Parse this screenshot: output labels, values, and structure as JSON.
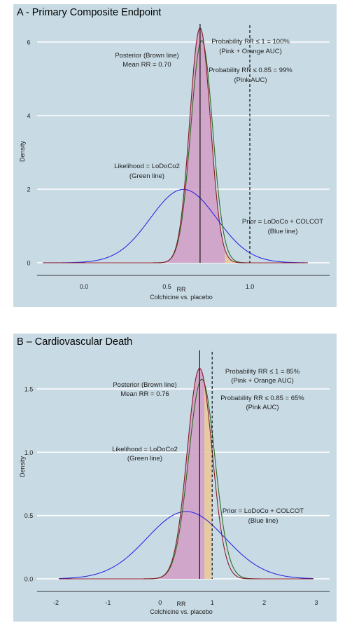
{
  "chart_data": [
    {
      "type": "line",
      "title": "A - Primary Composite Endpoint",
      "xlabel": "RR",
      "xlabel2": "Colchicine vs. placebo",
      "ylabel": "Density",
      "xlim": [
        -0.3,
        1.4
      ],
      "ylim": [
        -0.3,
        6.6
      ],
      "x_ticks": [
        "0.0",
        "0.5",
        "1.0"
      ],
      "y_ticks": [
        "0",
        "2",
        "4",
        "6"
      ],
      "grid": "horizontal",
      "series": [
        {
          "name": "Posterior (Brown line)",
          "color": "#8b1a2a",
          "distribution": "normal",
          "mean": 0.7,
          "sd": 0.0625
        },
        {
          "name": "Likelihood = LoDoCo2 (Green line)",
          "color": "#2e6b1f",
          "distribution": "normal",
          "mean": 0.71,
          "sd": 0.066
        },
        {
          "name": "Prior = LoDoCo + COLCOT (Blue line)",
          "color": "#2a2ae0",
          "distribution": "normal",
          "mean": 0.6,
          "sd": 0.2
        }
      ],
      "shading": {
        "pink_upper": 0.85,
        "orange_upper": 1.0,
        "pink_color": "#d1a0c8",
        "orange_color": "#e8c89a"
      },
      "vlines": [
        {
          "x": 0.7,
          "style": "solid",
          "label": "Mean RR"
        },
        {
          "x": 1.0,
          "style": "dashed",
          "label": "RR = 1"
        }
      ],
      "annotations": {
        "posterior_1": "Posterior (Brown line)",
        "posterior_2": "Mean RR = 0.70",
        "prob1_1": "Probability RR ≤ 1 = 100%",
        "prob1_2": "(Pink + Orange AUC)",
        "prob2_1": "Probability RR ≤ 0.85 = 99%",
        "prob2_2": "(Pink AUC)",
        "likelihood_1": "Likelihood = LoDoCo2",
        "likelihood_2": "(Green line)",
        "prior_1": "Prior = LoDoCo + COLCOT",
        "prior_2": "(Blue line)"
      }
    },
    {
      "type": "line",
      "title": "B – Cardiovascular Death",
      "xlabel": "RR",
      "xlabel2": "Colchicine vs. placebo",
      "ylabel": "Density",
      "xlim": [
        -2.1,
        3.1
      ],
      "ylim": [
        -0.05,
        1.75
      ],
      "x_ticks": [
        "-2",
        "-1",
        "0",
        "1",
        "2",
        "3"
      ],
      "y_ticks": [
        "0.0",
        "0.5",
        "1.0",
        "1.5"
      ],
      "grid": "horizontal",
      "series": [
        {
          "name": "Posterior (Brown line)",
          "color": "#8b1a2a",
          "distribution": "normal",
          "mean": 0.76,
          "sd": 0.24
        },
        {
          "name": "Likelihood = LoDoCo2 (Green line)",
          "color": "#2e6b1f",
          "distribution": "normal",
          "mean": 0.8,
          "sd": 0.253
        },
        {
          "name": "Prior = LoDoCo + COLCOT (Blue line)",
          "color": "#2a2ae0",
          "distribution": "normal",
          "mean": 0.5,
          "sd": 0.75
        }
      ],
      "shading": {
        "pink_upper": 0.85,
        "orange_upper": 1.0,
        "pink_color": "#d1a0c8",
        "orange_color": "#e8c89a"
      },
      "vlines": [
        {
          "x": 0.76,
          "style": "solid",
          "label": "Mean RR"
        },
        {
          "x": 1.0,
          "style": "dashed",
          "label": "RR = 1"
        }
      ],
      "annotations": {
        "posterior_1": "Posterior (Brown line)",
        "posterior_2": "Mean RR = 0.76",
        "prob1_1": "Probability RR ≤ 1 = 85%",
        "prob1_2": "(Pink + Orange AUC)",
        "prob2_1": "Probability RR ≤ 0.85 = 65%",
        "prob2_2": "(Pink AUC)",
        "likelihood_1": "Likelihood = LoDoCo2",
        "likelihood_2": "(Green line)",
        "prior_1": "Prior = LoDoCo + COLCOT",
        "prior_2": "(Blue line)"
      }
    }
  ]
}
